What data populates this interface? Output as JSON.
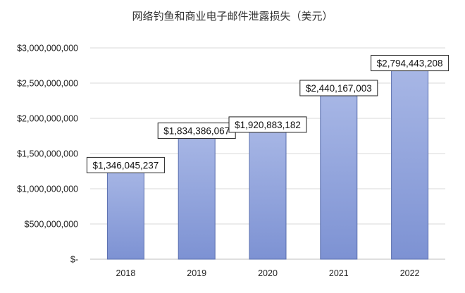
{
  "chart_data": {
    "type": "bar",
    "title": "网络钓鱼和商业电子邮件泄露损失（美元）",
    "categories": [
      "2018",
      "2019",
      "2020",
      "2021",
      "2022"
    ],
    "values": [
      1346045237,
      1834386067,
      1920883182,
      2440167003,
      2794443208
    ],
    "data_labels": [
      "$1,346,045,237",
      "$1,834,386,067",
      "$1,920,883,182",
      "$2,440,167,003",
      "$2,794,443,208"
    ],
    "yticks": [
      0,
      500000000,
      1000000000,
      1500000000,
      2000000000,
      2500000000,
      3000000000
    ],
    "ytick_labels": [
      "$-",
      "$500,000,000",
      "$1,000,000,000",
      "$1,500,000,000",
      "$2,000,000,000",
      "$2,500,000,000",
      "$3,000,000,000"
    ],
    "ylim": [
      0,
      3000000000
    ],
    "grid": true,
    "legend": "none",
    "bar_color_top": "#a9b8e6",
    "bar_color_bottom": "#7d92d3",
    "bar_edge": "#5a6fae"
  }
}
